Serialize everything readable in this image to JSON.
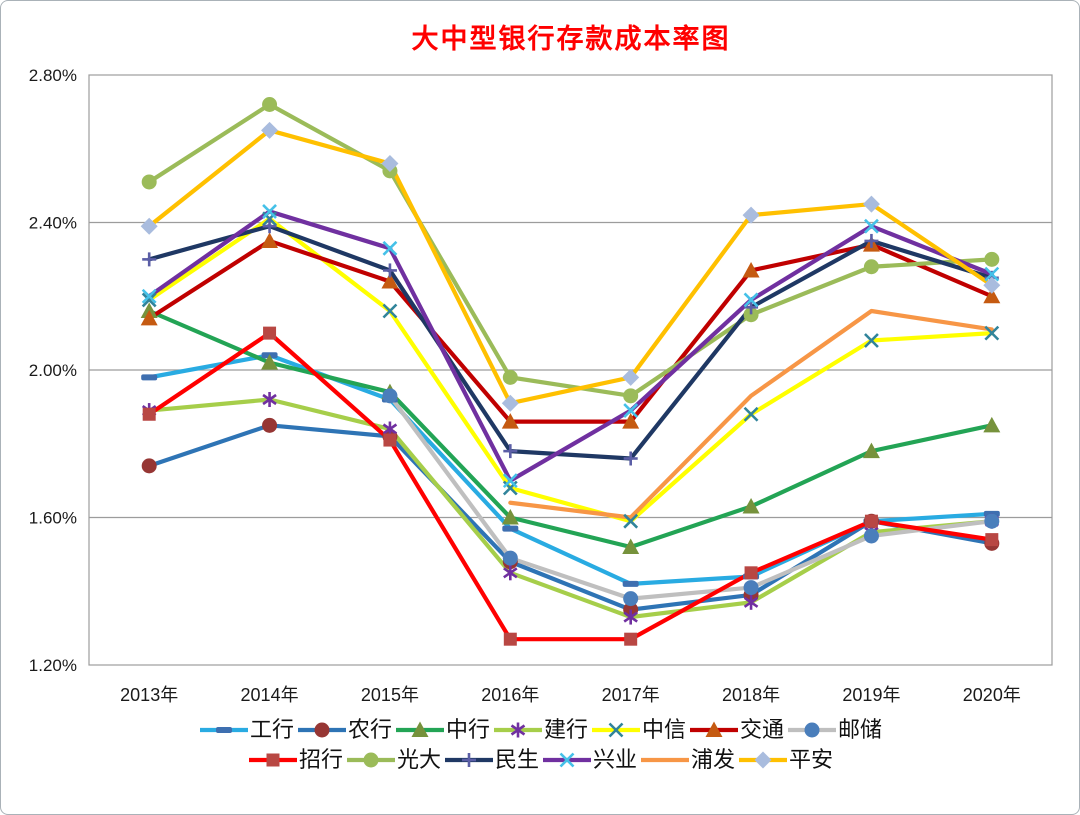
{
  "title": "大中型银行存款成本率图",
  "axis_text_color": "#1a1a1a",
  "grid_color": "#9c9c9c",
  "chart_data": {
    "type": "line",
    "title": "大中型银行存款成本率图",
    "title_color": "#ff0000",
    "xlabel": "",
    "ylabel": "",
    "categories": [
      "2013年",
      "2014年",
      "2015年",
      "2016年",
      "2017年",
      "2018年",
      "2019年",
      "2020年"
    ],
    "ylim": [
      1.2,
      2.8
    ],
    "y_ticks": [
      {
        "value": 2.8,
        "label": "2.80%"
      },
      {
        "value": 2.4,
        "label": "2.40%"
      },
      {
        "value": 2.0,
        "label": "2.00%"
      },
      {
        "value": 1.6,
        "label": "1.60%"
      },
      {
        "value": 1.2,
        "label": "1.20%"
      }
    ],
    "grid": true,
    "legend_position": "bottom",
    "legend_rows": [
      [
        0,
        1,
        2,
        3,
        4,
        5,
        6
      ],
      [
        7,
        8,
        9,
        10,
        11,
        12
      ]
    ],
    "unit": "percent",
    "series": [
      {
        "name": "工行",
        "line_color": "#29abe2",
        "marker": "dash",
        "marker_color": "#3e6fb0",
        "values": [
          1.98,
          2.04,
          1.92,
          1.57,
          1.42,
          1.44,
          1.59,
          1.61
        ]
      },
      {
        "name": "农行",
        "line_color": "#2e74b5",
        "marker": "circle",
        "marker_color": "#963634",
        "values": [
          1.74,
          1.85,
          1.82,
          1.48,
          1.35,
          1.39,
          1.59,
          1.53
        ]
      },
      {
        "name": "中行",
        "line_color": "#23a455",
        "marker": "triangle",
        "marker_color": "#76923c",
        "values": [
          2.16,
          2.02,
          1.94,
          1.6,
          1.52,
          1.63,
          1.78,
          1.85
        ]
      },
      {
        "name": "建行",
        "line_color": "#a6ce4a",
        "marker": "asterisk",
        "marker_color": "#7030a0",
        "values": [
          1.89,
          1.92,
          1.84,
          1.45,
          1.33,
          1.37,
          1.56,
          1.59
        ]
      },
      {
        "name": "中信",
        "line_color": "#ffff00",
        "marker": "x",
        "marker_color": "#31849b",
        "values": [
          2.19,
          2.41,
          2.16,
          1.68,
          1.59,
          1.88,
          2.08,
          2.1
        ]
      },
      {
        "name": "交通",
        "line_color": "#c00000",
        "marker": "triangle",
        "marker_color": "#c55a11",
        "values": [
          2.14,
          2.35,
          2.24,
          1.86,
          1.86,
          2.27,
          2.34,
          2.2
        ]
      },
      {
        "name": "邮储",
        "line_color": "#bfbfbf",
        "marker": "circle",
        "marker_color": "#4a7ebb",
        "values": [
          null,
          null,
          1.93,
          1.49,
          1.38,
          1.41,
          1.55,
          1.59
        ]
      },
      {
        "name": "招行",
        "line_color": "#ff0000",
        "marker": "square",
        "marker_color": "#b84743",
        "values": [
          1.88,
          2.1,
          1.81,
          1.27,
          1.27,
          1.45,
          1.59,
          1.54
        ]
      },
      {
        "name": "光大",
        "line_color": "#9bbb59",
        "marker": "circle",
        "marker_color": "#9bbb59",
        "values": [
          2.51,
          2.72,
          2.54,
          1.98,
          1.93,
          2.15,
          2.28,
          2.3
        ]
      },
      {
        "name": "民生",
        "line_color": "#1f3864",
        "marker": "plus",
        "marker_color": "#5b5ea6",
        "values": [
          2.3,
          2.39,
          2.27,
          1.78,
          1.76,
          2.17,
          2.35,
          2.25
        ]
      },
      {
        "name": "兴业",
        "line_color": "#7030a0",
        "marker": "x",
        "marker_color": "#45c1e8",
        "values": [
          2.2,
          2.43,
          2.33,
          1.7,
          1.89,
          2.19,
          2.39,
          2.26
        ]
      },
      {
        "name": "浦发",
        "line_color": "#f79646",
        "marker": "none",
        "marker_color": "#f79646",
        "values": [
          null,
          null,
          null,
          1.64,
          1.6,
          1.93,
          2.16,
          2.11
        ]
      },
      {
        "name": "平安",
        "line_color": "#ffc000",
        "marker": "diamond",
        "marker_color": "#a9bcde",
        "values": [
          2.39,
          2.65,
          2.56,
          1.91,
          1.98,
          2.42,
          2.45,
          2.23
        ]
      }
    ]
  }
}
